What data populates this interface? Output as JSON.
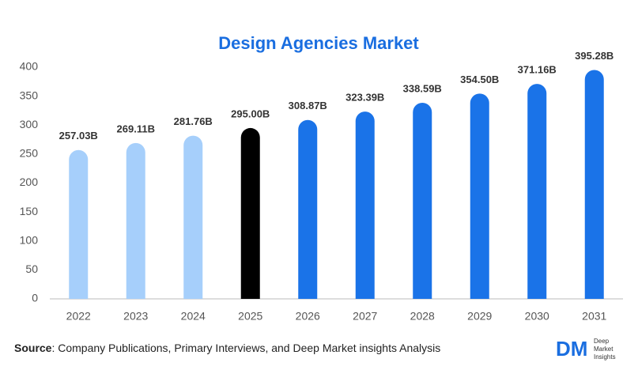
{
  "chart_data": {
    "type": "bar",
    "title": "Design Agencies Market",
    "categories": [
      "2022",
      "2023",
      "2024",
      "2025",
      "2026",
      "2027",
      "2028",
      "2029",
      "2030",
      "2031"
    ],
    "values": [
      257.03,
      269.11,
      281.76,
      295.0,
      308.87,
      323.39,
      338.59,
      354.5,
      371.16,
      395.28
    ],
    "value_labels": [
      "257.03B",
      "269.11B",
      "281.76B",
      "295.00B",
      "308.87B",
      "323.39B",
      "338.59B",
      "354.50B",
      "371.16B",
      "395.28B"
    ],
    "colors": [
      "#a6cffb",
      "#a6cffb",
      "#a6cffb",
      "#000000",
      "#1a73e8",
      "#1a73e8",
      "#1a73e8",
      "#1a73e8",
      "#1a73e8",
      "#1a73e8"
    ],
    "ylim": [
      0,
      400
    ],
    "yticks": [
      0,
      50,
      100,
      150,
      200,
      250,
      300,
      350,
      400
    ],
    "grid": false,
    "source_label": "Source",
    "source_text": ": Company Publications, Primary Interviews, and Deep Market insights Analysis",
    "logo_mark": "DM",
    "logo_text": [
      "Deep",
      "Market",
      "Insights"
    ]
  }
}
